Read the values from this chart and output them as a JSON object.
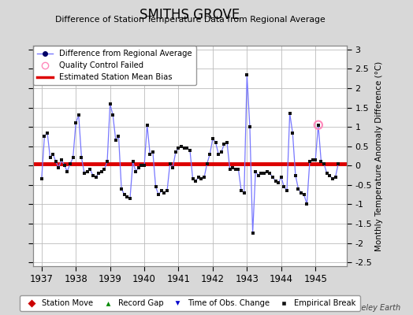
{
  "title": "SMITHS GROVE",
  "subtitle": "Difference of Station Temperature Data from Regional Average",
  "ylabel": "Monthly Temperature Anomaly Difference (°C)",
  "xlim": [
    1936.75,
    1945.92
  ],
  "ylim": [
    -2.6,
    3.1
  ],
  "yticks": [
    -2.5,
    -2,
    -1.5,
    -1,
    -0.5,
    0,
    0.5,
    1,
    1.5,
    2,
    2.5,
    3
  ],
  "xticks": [
    1937,
    1938,
    1939,
    1940,
    1941,
    1942,
    1943,
    1944,
    1945
  ],
  "bias_value": 0.05,
  "line_color": "#7777ff",
  "dot_color": "#111111",
  "bias_color": "#dd0000",
  "background_color": "#d8d8d8",
  "plot_bg_color": "#ffffff",
  "qc_failed_x": 1945.083,
  "qc_failed_y": 1.05,
  "monthly_data": [
    [
      1937.0,
      -0.35
    ],
    [
      1937.083,
      0.75
    ],
    [
      1937.167,
      0.85
    ],
    [
      1937.25,
      0.2
    ],
    [
      1937.333,
      0.3
    ],
    [
      1937.417,
      0.1
    ],
    [
      1937.5,
      -0.05
    ],
    [
      1937.583,
      0.15
    ],
    [
      1937.667,
      0.0
    ],
    [
      1937.75,
      -0.15
    ],
    [
      1937.833,
      0.05
    ],
    [
      1937.917,
      0.2
    ],
    [
      1938.0,
      1.1
    ],
    [
      1938.083,
      1.3
    ],
    [
      1938.167,
      0.2
    ],
    [
      1938.25,
      -0.2
    ],
    [
      1938.333,
      -0.15
    ],
    [
      1938.417,
      -0.1
    ],
    [
      1938.5,
      -0.25
    ],
    [
      1938.583,
      -0.3
    ],
    [
      1938.667,
      -0.2
    ],
    [
      1938.75,
      -0.15
    ],
    [
      1938.833,
      -0.1
    ],
    [
      1938.917,
      0.1
    ],
    [
      1939.0,
      1.6
    ],
    [
      1939.083,
      1.3
    ],
    [
      1939.167,
      0.65
    ],
    [
      1939.25,
      0.75
    ],
    [
      1939.333,
      -0.6
    ],
    [
      1939.417,
      -0.75
    ],
    [
      1939.5,
      -0.8
    ],
    [
      1939.583,
      -0.85
    ],
    [
      1939.667,
      0.1
    ],
    [
      1939.75,
      -0.15
    ],
    [
      1939.833,
      -0.05
    ],
    [
      1939.917,
      0.0
    ],
    [
      1940.0,
      0.0
    ],
    [
      1940.083,
      1.05
    ],
    [
      1940.167,
      0.3
    ],
    [
      1940.25,
      0.35
    ],
    [
      1940.333,
      -0.55
    ],
    [
      1940.417,
      -0.75
    ],
    [
      1940.5,
      -0.65
    ],
    [
      1940.583,
      -0.7
    ],
    [
      1940.667,
      -0.65
    ],
    [
      1940.75,
      0.05
    ],
    [
      1940.833,
      -0.05
    ],
    [
      1940.917,
      0.35
    ],
    [
      1941.0,
      0.45
    ],
    [
      1941.083,
      0.5
    ],
    [
      1941.167,
      0.45
    ],
    [
      1941.25,
      0.45
    ],
    [
      1941.333,
      0.4
    ],
    [
      1941.417,
      -0.35
    ],
    [
      1941.5,
      -0.4
    ],
    [
      1941.583,
      -0.3
    ],
    [
      1941.667,
      -0.35
    ],
    [
      1941.75,
      -0.3
    ],
    [
      1941.833,
      0.05
    ],
    [
      1941.917,
      0.3
    ],
    [
      1942.0,
      0.7
    ],
    [
      1942.083,
      0.6
    ],
    [
      1942.167,
      0.3
    ],
    [
      1942.25,
      0.35
    ],
    [
      1942.333,
      0.55
    ],
    [
      1942.417,
      0.6
    ],
    [
      1942.5,
      -0.1
    ],
    [
      1942.583,
      -0.05
    ],
    [
      1942.667,
      -0.1
    ],
    [
      1942.75,
      -0.1
    ],
    [
      1942.833,
      -0.65
    ],
    [
      1942.917,
      -0.7
    ],
    [
      1943.0,
      2.35
    ],
    [
      1943.083,
      1.0
    ],
    [
      1943.167,
      -1.75
    ],
    [
      1943.25,
      -0.15
    ],
    [
      1943.333,
      -0.25
    ],
    [
      1943.417,
      -0.2
    ],
    [
      1943.5,
      -0.2
    ],
    [
      1943.583,
      -0.15
    ],
    [
      1943.667,
      -0.2
    ],
    [
      1943.75,
      -0.3
    ],
    [
      1943.833,
      -0.4
    ],
    [
      1943.917,
      -0.45
    ],
    [
      1944.0,
      -0.3
    ],
    [
      1944.083,
      -0.55
    ],
    [
      1944.167,
      -0.65
    ],
    [
      1944.25,
      1.35
    ],
    [
      1944.333,
      0.85
    ],
    [
      1944.417,
      -0.25
    ],
    [
      1944.5,
      -0.6
    ],
    [
      1944.583,
      -0.7
    ],
    [
      1944.667,
      -0.75
    ],
    [
      1944.75,
      -1.0
    ],
    [
      1944.833,
      0.1
    ],
    [
      1944.917,
      0.15
    ],
    [
      1945.0,
      0.15
    ],
    [
      1945.083,
      1.05
    ],
    [
      1945.167,
      0.1
    ],
    [
      1945.25,
      0.05
    ],
    [
      1945.333,
      -0.2
    ],
    [
      1945.417,
      -0.25
    ],
    [
      1945.5,
      -0.35
    ],
    [
      1945.583,
      -0.3
    ],
    [
      1945.667,
      0.05
    ]
  ]
}
